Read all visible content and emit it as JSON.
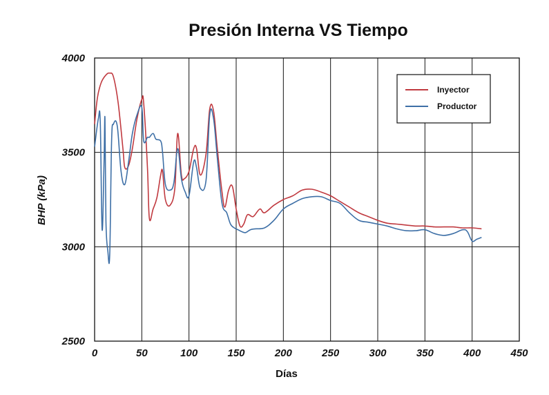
{
  "chart_data": {
    "type": "line",
    "title": "Presión Interna VS Tiempo",
    "xlabel": "Días",
    "ylabel": "BHP (kPa)",
    "xlim": [
      0,
      450
    ],
    "ylim": [
      2500,
      4000
    ],
    "xticks": [
      0,
      50,
      100,
      150,
      200,
      250,
      300,
      350,
      400,
      450
    ],
    "yticks": [
      2500,
      3000,
      3500,
      4000
    ],
    "grid": true,
    "legend_position": "top-right",
    "series": [
      {
        "name": "Inyector",
        "color": "#c0393f",
        "x": [
          0,
          3,
          7,
          12,
          16,
          20,
          25,
          30,
          32,
          36,
          40,
          45,
          50,
          52,
          56,
          58,
          62,
          66,
          70,
          72,
          75,
          80,
          85,
          88,
          92,
          95,
          100,
          105,
          108,
          112,
          118,
          122,
          126,
          130,
          135,
          138,
          142,
          146,
          150,
          154,
          158,
          162,
          168,
          175,
          180,
          190,
          200,
          210,
          220,
          230,
          240,
          250,
          260,
          270,
          280,
          290,
          300,
          310,
          320,
          330,
          340,
          350,
          360,
          370,
          380,
          390,
          400,
          410
        ],
        "values": [
          3650,
          3790,
          3870,
          3910,
          3920,
          3900,
          3760,
          3520,
          3420,
          3430,
          3520,
          3680,
          3780,
          3760,
          3420,
          3150,
          3200,
          3260,
          3380,
          3400,
          3250,
          3220,
          3310,
          3600,
          3380,
          3360,
          3400,
          3520,
          3520,
          3380,
          3490,
          3730,
          3720,
          3520,
          3290,
          3210,
          3300,
          3320,
          3200,
          3110,
          3120,
          3170,
          3160,
          3200,
          3180,
          3220,
          3250,
          3270,
          3300,
          3305,
          3290,
          3270,
          3240,
          3210,
          3180,
          3160,
          3140,
          3125,
          3120,
          3115,
          3110,
          3110,
          3105,
          3105,
          3105,
          3100,
          3100,
          3095
        ]
      },
      {
        "name": "Productor",
        "color": "#3d6fa6",
        "x": [
          0,
          4,
          6,
          8,
          10,
          11,
          12,
          14,
          16,
          18,
          20,
          24,
          28,
          32,
          36,
          40,
          45,
          50,
          52,
          56,
          58,
          62,
          65,
          70,
          72,
          75,
          80,
          84,
          88,
          92,
          96,
          100,
          105,
          108,
          112,
          118,
          122,
          126,
          130,
          135,
          140,
          144,
          148,
          152,
          156,
          160,
          165,
          170,
          180,
          190,
          200,
          210,
          220,
          230,
          240,
          250,
          260,
          270,
          280,
          290,
          300,
          310,
          320,
          330,
          340,
          350,
          360,
          370,
          380,
          390,
          395,
          400,
          405,
          410
        ],
        "values": [
          3530,
          3680,
          3660,
          3090,
          3450,
          3680,
          3140,
          2980,
          2960,
          3560,
          3650,
          3640,
          3400,
          3330,
          3450,
          3600,
          3700,
          3740,
          3560,
          3580,
          3580,
          3600,
          3570,
          3560,
          3500,
          3330,
          3300,
          3340,
          3520,
          3360,
          3290,
          3270,
          3450,
          3420,
          3310,
          3350,
          3700,
          3680,
          3470,
          3230,
          3180,
          3120,
          3100,
          3090,
          3080,
          3075,
          3090,
          3095,
          3100,
          3140,
          3200,
          3230,
          3255,
          3265,
          3265,
          3245,
          3230,
          3180,
          3140,
          3130,
          3120,
          3110,
          3095,
          3085,
          3085,
          3090,
          3070,
          3060,
          3070,
          3090,
          3080,
          3030,
          3040,
          3050
        ]
      }
    ]
  }
}
